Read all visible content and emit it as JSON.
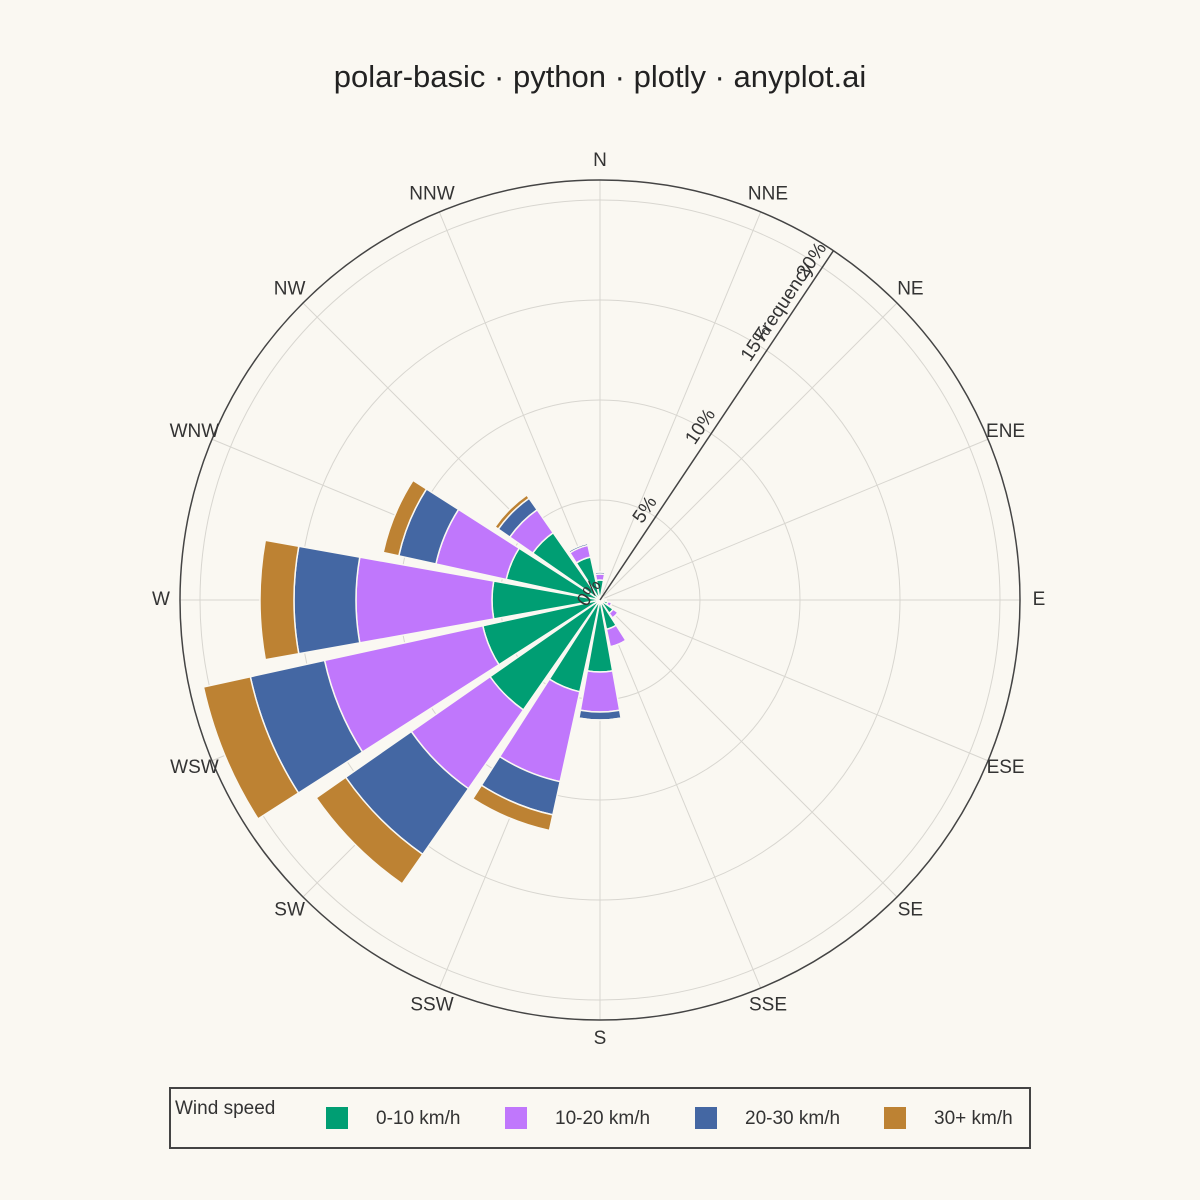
{
  "chart_data": {
    "type": "barpolar",
    "title": "polar-basic · python · plotly · anyplot.ai",
    "categories": [
      "N",
      "NNE",
      "NE",
      "ENE",
      "E",
      "ESE",
      "SE",
      "SSE",
      "S",
      "SSW",
      "SW",
      "WSW",
      "W",
      "WNW",
      "NW",
      "NNW"
    ],
    "series": [
      {
        "name": "0-10 km/h",
        "color": "#009e73",
        "values": [
          1.0,
          0.3,
          0.2,
          0.2,
          0.3,
          0.4,
          0.8,
          1.5,
          3.6,
          4.7,
          6.7,
          6.0,
          5.4,
          4.8,
          4.1,
          2.2
        ]
      },
      {
        "name": "10-20 km/h",
        "color": "#c077fc",
        "values": [
          0.3,
          0,
          0,
          0,
          0,
          0.2,
          0.3,
          0.9,
          2.0,
          4.6,
          4.8,
          8.1,
          6.8,
          3.6,
          1.4,
          0.6
        ]
      },
      {
        "name": "20-30 km/h",
        "color": "#4467a3",
        "values": [
          0.1,
          0,
          0,
          0,
          0,
          0,
          0,
          0,
          0.4,
          1.7,
          4.0,
          3.8,
          3.1,
          1.9,
          0.7,
          0.1
        ]
      },
      {
        "name": "30+ km/h",
        "color": "#bd8233",
        "values": [
          0,
          0,
          0,
          0,
          0,
          0,
          0,
          0,
          0,
          0.8,
          1.8,
          2.4,
          1.7,
          0.8,
          0.2,
          0
        ]
      }
    ],
    "radial_axis_title": "Frequency",
    "rlim": [
      0,
      21
    ],
    "rticks": [
      {
        "value": 0,
        "label": "0%"
      },
      {
        "value": 5,
        "label": "5%"
      },
      {
        "value": 10,
        "label": "10%"
      },
      {
        "value": 15,
        "label": "15%"
      },
      {
        "value": 20,
        "label": "20%"
      }
    ],
    "grid": true,
    "legend_title": "Wind speed",
    "legend_position": "bottom"
  }
}
